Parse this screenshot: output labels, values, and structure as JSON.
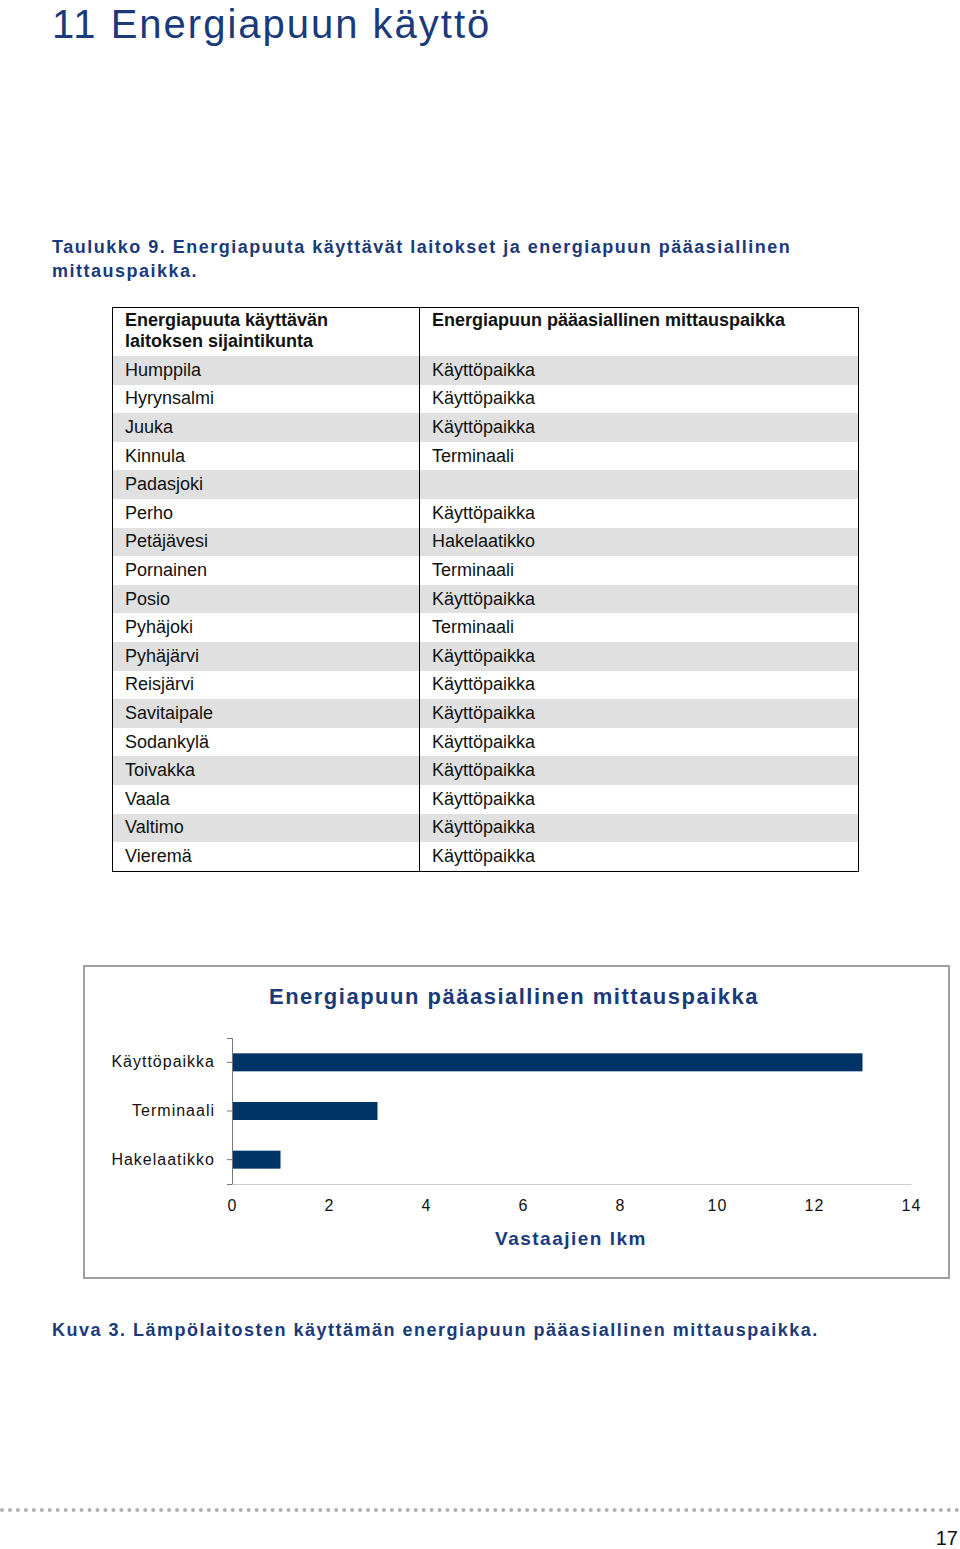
{
  "heading": "11 Energiapuun käyttö",
  "table": {
    "caption": "Taulukko 9. Energiapuuta käyttävät laitokset ja energiapuun pääasiallinen mittauspaikka.",
    "header": [
      "Energiapuuta käyttävän laitoksen sijaintikunta",
      "Energiapuun pääasiallinen mittauspaikka"
    ],
    "rows": [
      [
        "Humppila",
        "Käyttöpaikka"
      ],
      [
        "Hyrynsalmi",
        "Käyttöpaikka"
      ],
      [
        "Juuka",
        "Käyttöpaikka"
      ],
      [
        "Kinnula",
        "Terminaali"
      ],
      [
        "Padasjoki",
        null
      ],
      [
        "Perho",
        "Käyttöpaikka"
      ],
      [
        "Petäjävesi",
        "Hakelaatikko"
      ],
      [
        "Pornainen",
        "Terminaali"
      ],
      [
        "Posio",
        "Käyttöpaikka"
      ],
      [
        "Pyhäjoki",
        "Terminaali"
      ],
      [
        "Pyhäjärvi",
        "Käyttöpaikka"
      ],
      [
        "Reisjärvi",
        "Käyttöpaikka"
      ],
      [
        "Savitaipale",
        "Käyttöpaikka"
      ],
      [
        "Sodankylä",
        "Käyttöpaikka"
      ],
      [
        "Toivakka",
        "Käyttöpaikka"
      ],
      [
        "Vaala",
        "Käyttöpaikka"
      ],
      [
        "Valtimo",
        "Käyttöpaikka"
      ],
      [
        "Vieremä",
        "Käyttöpaikka"
      ]
    ]
  },
  "chart_data": {
    "type": "bar",
    "orientation": "horizontal",
    "title": "Energiapuun pääasiallinen mittauspaikka",
    "categories": [
      "Käyttöpaikka",
      "Terminaali",
      "Hakelaatikko"
    ],
    "values": [
      13,
      3,
      1
    ],
    "color": "#003366",
    "xlim": [
      0,
      14
    ],
    "xticks": [
      0,
      2,
      4,
      6,
      8,
      10,
      12,
      14
    ],
    "xlabel": "Vastaajien lkm",
    "grid": false
  },
  "figure_caption": "Kuva 3. Lämpölaitosten käyttämän energiapuun pääasiallinen mittauspaikka.",
  "page_number": "17"
}
